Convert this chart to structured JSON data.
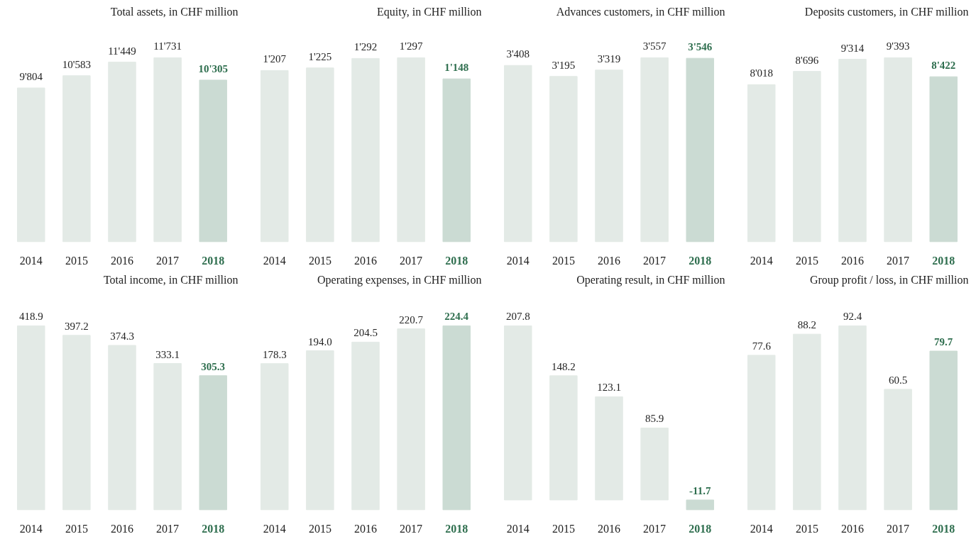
{
  "chart_data": [
    {
      "type": "bar",
      "title": "Total assets, in CHF million",
      "categories": [
        "2014",
        "2015",
        "2016",
        "2017",
        "2018"
      ],
      "values": [
        9804,
        10583,
        11449,
        11731,
        10305
      ],
      "value_labels": [
        "9'804",
        "10'583",
        "11'449",
        "11'731",
        "10'305"
      ],
      "colors": [
        "#e3eae6",
        "#e3eae6",
        "#e3eae6",
        "#e3eae6",
        "#cbdbd3"
      ]
    },
    {
      "type": "bar",
      "title": "Equity, in CHF million",
      "categories": [
        "2014",
        "2015",
        "2016",
        "2017",
        "2018"
      ],
      "values": [
        1207,
        1225,
        1292,
        1297,
        1148
      ],
      "value_labels": [
        "1'207",
        "1'225",
        "1'292",
        "1'297",
        "1'148"
      ],
      "colors": [
        "#e3eae6",
        "#e3eae6",
        "#e3eae6",
        "#e3eae6",
        "#cbdbd3"
      ]
    },
    {
      "type": "bar",
      "title": "Advances customers, in CHF million",
      "categories": [
        "2014",
        "2015",
        "2016",
        "2017",
        "2018"
      ],
      "values": [
        3408,
        3195,
        3319,
        3557,
        3546
      ],
      "value_labels": [
        "3'408",
        "3'195",
        "3'319",
        "3'557",
        "3'546"
      ],
      "colors": [
        "#e3eae6",
        "#e3eae6",
        "#e3eae6",
        "#e3eae6",
        "#cbdbd3"
      ]
    },
    {
      "type": "bar",
      "title": "Deposits customers, in CHF million",
      "categories": [
        "2014",
        "2015",
        "2016",
        "2017",
        "2018"
      ],
      "values": [
        8018,
        8696,
        9314,
        9393,
        8422
      ],
      "value_labels": [
        "8'018",
        "8'696",
        "9'314",
        "9'393",
        "8'422"
      ],
      "colors": [
        "#e3eae6",
        "#e3eae6",
        "#e3eae6",
        "#e3eae6",
        "#cbdbd3"
      ]
    },
    {
      "type": "bar",
      "title": "Total income, in CHF million",
      "categories": [
        "2014",
        "2015",
        "2016",
        "2017",
        "2018"
      ],
      "values": [
        418.9,
        397.2,
        374.3,
        333.1,
        305.3
      ],
      "value_labels": [
        "418.9",
        "397.2",
        "374.3",
        "333.1",
        "305.3"
      ],
      "colors": [
        "#e3eae6",
        "#e3eae6",
        "#e3eae6",
        "#e3eae6",
        "#cbdbd3"
      ]
    },
    {
      "type": "bar",
      "title": "Operating expenses, in CHF million",
      "categories": [
        "2014",
        "2015",
        "2016",
        "2017",
        "2018"
      ],
      "values": [
        178.3,
        194.0,
        204.5,
        220.7,
        224.4
      ],
      "value_labels": [
        "178.3",
        "194.0",
        "204.5",
        "220.7",
        "224.4"
      ],
      "colors": [
        "#e3eae6",
        "#e3eae6",
        "#e3eae6",
        "#e3eae6",
        "#cbdbd3"
      ]
    },
    {
      "type": "bar",
      "title": "Operating result, in CHF million",
      "categories": [
        "2014",
        "2015",
        "2016",
        "2017",
        "2018"
      ],
      "values": [
        207.8,
        148.2,
        123.1,
        85.9,
        -11.7
      ],
      "value_labels": [
        "207.8",
        "148.2",
        "123.1",
        "85.9",
        "-11.7"
      ],
      "colors": [
        "#e3eae6",
        "#e3eae6",
        "#e3eae6",
        "#e3eae6",
        "#cbdbd3"
      ]
    },
    {
      "type": "bar",
      "title": "Group profit / loss, in CHF million",
      "categories": [
        "2014",
        "2015",
        "2016",
        "2017",
        "2018"
      ],
      "values": [
        77.6,
        88.2,
        92.4,
        60.5,
        79.7
      ],
      "value_labels": [
        "77.6",
        "88.2",
        "92.4",
        "60.5",
        "79.7"
      ],
      "colors": [
        "#e3eae6",
        "#e3eae6",
        "#e3eae6",
        "#e3eae6",
        "#cbdbd3"
      ]
    }
  ]
}
